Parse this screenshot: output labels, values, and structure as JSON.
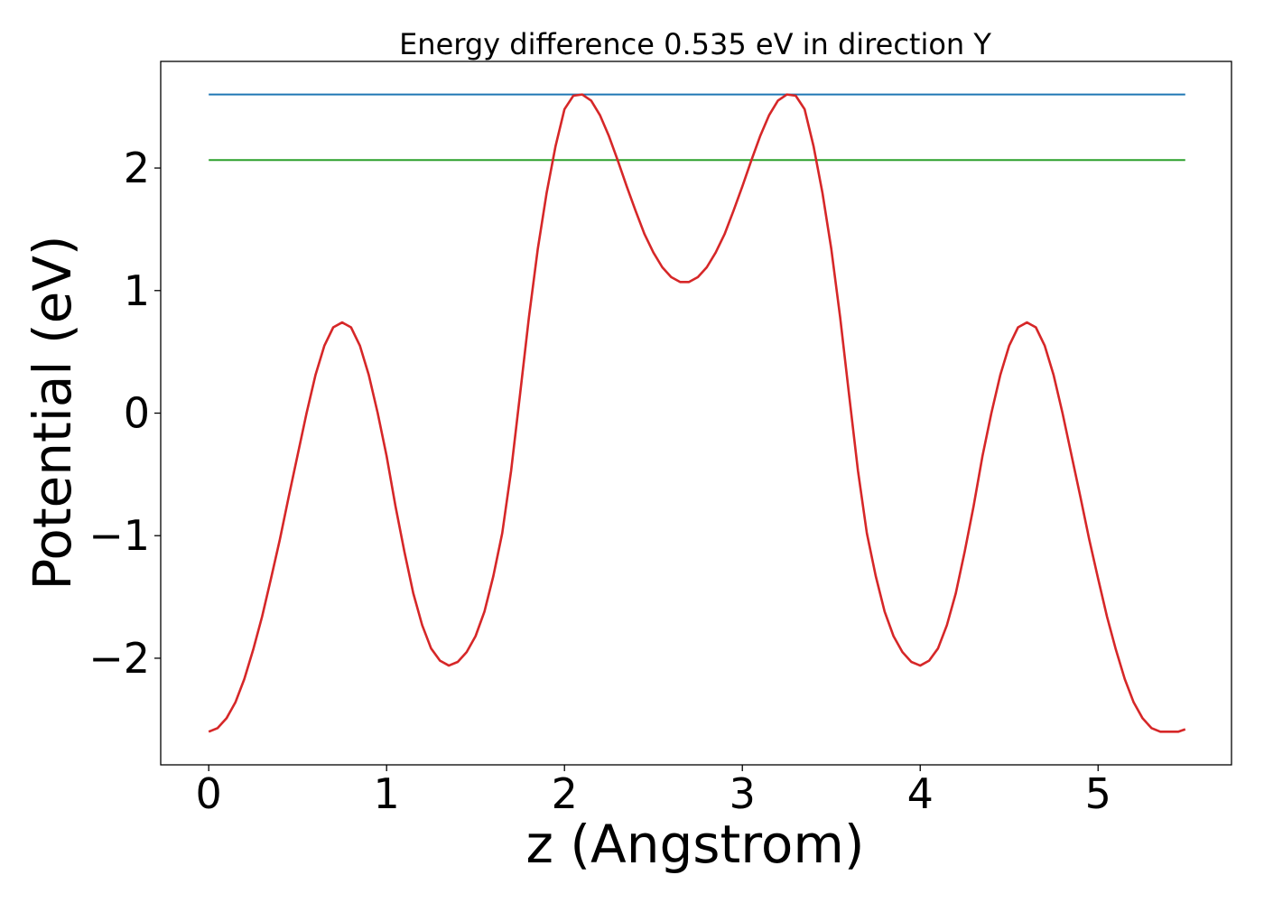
{
  "chart_data": {
    "type": "line",
    "title": "Energy difference 0.535 eV in direction Y",
    "xlabel": "z (Angstrom)",
    "ylabel": "Potential (eV)",
    "xlim": [
      -0.27,
      5.75
    ],
    "ylim": [
      -2.87,
      2.87
    ],
    "grid": false,
    "xticks": [
      {
        "value": 0,
        "label": "0"
      },
      {
        "value": 1,
        "label": "1"
      },
      {
        "value": 2,
        "label": "2"
      },
      {
        "value": 3,
        "label": "3"
      },
      {
        "value": 4,
        "label": "4"
      },
      {
        "value": 5,
        "label": "5"
      }
    ],
    "yticks": [
      {
        "value": -2,
        "label": "−2"
      },
      {
        "value": -1,
        "label": "−1"
      },
      {
        "value": 0,
        "label": "0"
      },
      {
        "value": 1,
        "label": "1"
      },
      {
        "value": 2,
        "label": "2"
      }
    ],
    "series": [
      {
        "color": "#d62728",
        "x": [
          0,
          0.05,
          0.1,
          0.15,
          0.2,
          0.25,
          0.3,
          0.35,
          0.4,
          0.45,
          0.5,
          0.55,
          0.6,
          0.65,
          0.7,
          0.75,
          0.8,
          0.85,
          0.9,
          0.95,
          1.0,
          1.05,
          1.1,
          1.15,
          1.2,
          1.25,
          1.3,
          1.35,
          1.4,
          1.45,
          1.5,
          1.55,
          1.6,
          1.65,
          1.7,
          1.75,
          1.8,
          1.85,
          1.9,
          1.95,
          2.0,
          2.05,
          2.1,
          2.15,
          2.2,
          2.25,
          2.3,
          2.35,
          2.4,
          2.45,
          2.5,
          2.55,
          2.6,
          2.65,
          2.7,
          2.75,
          2.8,
          2.85,
          2.9,
          2.95,
          3.0,
          3.05,
          3.1,
          3.15,
          3.2,
          3.25,
          3.3,
          3.35,
          3.4,
          3.45,
          3.5,
          3.55,
          3.6,
          3.65,
          3.7,
          3.75,
          3.8,
          3.85,
          3.9,
          3.95,
          4.0,
          4.05,
          4.1,
          4.15,
          4.2,
          4.25,
          4.3,
          4.35,
          4.4,
          4.45,
          4.5,
          4.55,
          4.6,
          4.65,
          4.7,
          4.75,
          4.8,
          4.85,
          4.9,
          4.95,
          5.0,
          5.05,
          5.1,
          5.15,
          5.2,
          5.25,
          5.3,
          5.35,
          5.4,
          5.45,
          5.49
        ],
        "y": [
          -2.6,
          -2.57,
          -2.49,
          -2.36,
          -2.17,
          -1.93,
          -1.66,
          -1.35,
          -1.03,
          -0.68,
          -0.34,
          0.0,
          0.31,
          0.55,
          0.7,
          0.74,
          0.7,
          0.55,
          0.31,
          0.0,
          -0.35,
          -0.76,
          -1.13,
          -1.47,
          -1.73,
          -1.92,
          -2.02,
          -2.06,
          -2.03,
          -1.95,
          -1.82,
          -1.62,
          -1.33,
          -0.98,
          -0.47,
          0.15,
          0.78,
          1.34,
          1.8,
          2.18,
          2.48,
          2.59,
          2.6,
          2.55,
          2.43,
          2.26,
          2.06,
          1.85,
          1.65,
          1.46,
          1.31,
          1.19,
          1.11,
          1.07,
          1.07,
          1.11,
          1.19,
          1.31,
          1.46,
          1.65,
          1.85,
          2.06,
          2.26,
          2.43,
          2.55,
          2.6,
          2.59,
          2.48,
          2.18,
          1.8,
          1.34,
          0.78,
          0.15,
          -0.47,
          -0.98,
          -1.33,
          -1.62,
          -1.82,
          -1.95,
          -2.03,
          -2.06,
          -2.02,
          -1.92,
          -1.73,
          -1.47,
          -1.13,
          -0.76,
          -0.35,
          0.0,
          0.31,
          0.55,
          0.7,
          0.74,
          0.7,
          0.55,
          0.31,
          0.0,
          -0.34,
          -0.68,
          -1.03,
          -1.35,
          -1.66,
          -1.93,
          -2.17,
          -2.36,
          -2.49,
          -2.57,
          -2.6,
          -2.6,
          -2.6,
          -2.58
        ]
      },
      {
        "color": "#1f77b4",
        "x": [
          0,
          5.49
        ],
        "y": [
          2.6,
          2.6
        ]
      },
      {
        "color": "#2ca02c",
        "x": [
          0,
          5.49
        ],
        "y": [
          2.065,
          2.065
        ]
      }
    ]
  }
}
